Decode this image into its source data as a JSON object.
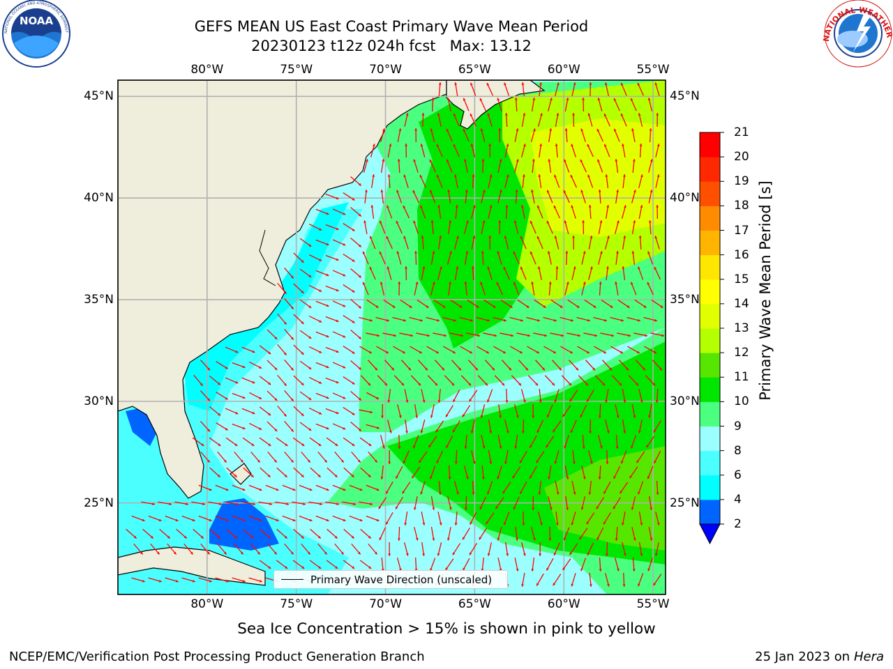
{
  "title": {
    "line1": "GEFS MEAN US East Coast Primary Wave Mean Period",
    "line2": "20230123 t12z 024h fcst   Max: 13.12"
  },
  "footer": {
    "sea_ice_note": "Sea Ice Concentration > 15% is shown in pink to yellow",
    "credit": "NCEP/EMC/Verification Post Processing Product Generation Branch",
    "date": "25 Jan 2023 on",
    "machine": "Hera"
  },
  "logos": {
    "left": {
      "icon": "noaa-logo-icon",
      "text": "NOAA",
      "ring_text": "NATIONAL OCEANIC AND ATMOSPHERIC ADMINISTRATION · U.S. DEPARTMENT OF COMMERCE"
    },
    "right": {
      "icon": "nws-logo-icon",
      "ring_text": "NATIONAL WEATHER SERVICE"
    }
  },
  "map": {
    "lon_ticks": [
      "80°W",
      "75°W",
      "70°W",
      "65°W",
      "60°W",
      "55°W"
    ],
    "lat_ticks": [
      "45°N",
      "40°N",
      "35°N",
      "30°N",
      "25°N"
    ],
    "lon_range": [
      -85,
      -54.3
    ],
    "lat_range": [
      20.5,
      45.8
    ],
    "legend": "Primary Wave Direction (unscaled)",
    "vector_color": "#ff0000",
    "land_color": "#efeedc"
  },
  "colorbar": {
    "label": "Primary Wave Mean Period [s]",
    "ticks": [
      "2",
      "4",
      "6",
      "8",
      "9",
      "10",
      "11",
      "12",
      "13",
      "14",
      "15",
      "16",
      "17",
      "18",
      "19",
      "20",
      "21"
    ],
    "colors": [
      "#0065ff",
      "#00ffff",
      "#4bffff",
      "#9bffff",
      "#4bff80",
      "#00e600",
      "#57e600",
      "#b4ff00",
      "#e1ff00",
      "#ffff00",
      "#ffe600",
      "#ffb400",
      "#ff8c00",
      "#ff5000",
      "#ff2800",
      "#ff0000"
    ],
    "under_color": "#0000ff"
  }
}
